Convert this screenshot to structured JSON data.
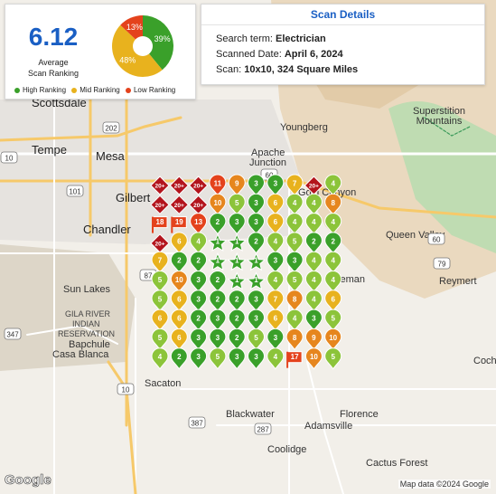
{
  "summary": {
    "score": "6.12",
    "score_label_1": "Average",
    "score_label_2": "Scan Ranking",
    "donut": [
      {
        "label": "39%",
        "value": 39,
        "color": "#3aa02a"
      },
      {
        "label": "48%",
        "value": 48,
        "color": "#e8b21e"
      },
      {
        "label": "13%",
        "value": 13,
        "color": "#e4421c"
      }
    ],
    "legend": [
      {
        "label": "High Ranking",
        "color": "#3aa02a"
      },
      {
        "label": "Mid Ranking",
        "color": "#e8b21e"
      },
      {
        "label": "Low Ranking",
        "color": "#e4421c"
      }
    ]
  },
  "details": {
    "title": "Scan Details",
    "search_prefix": "Search term:",
    "search_value": "Electrician",
    "date_prefix": "Scanned Date:",
    "date_value": "April 6, 2024",
    "scan_prefix": "Scan:",
    "scan_value": "10x10, 324 Square Miles"
  },
  "map": {
    "places": [
      {
        "name": "Scottsdale",
        "cls": "place-big"
      },
      {
        "name": "Tempe",
        "cls": "place-big"
      },
      {
        "name": "Mesa",
        "cls": "place-big"
      },
      {
        "name": "Gilbert",
        "cls": "place-big"
      },
      {
        "name": "Chandler",
        "cls": "place-big"
      },
      {
        "name": "Apache Junction",
        "cls": "place"
      },
      {
        "name": "Youngberg",
        "cls": "place"
      },
      {
        "name": "Superstition Mountains",
        "cls": "place"
      },
      {
        "name": "Queen Valley",
        "cls": "place"
      },
      {
        "name": "Reymert",
        "cls": "place"
      },
      {
        "name": "Sun Lakes",
        "cls": "place"
      },
      {
        "name": "GILA RIVER INDIAN RESERVATION",
        "cls": "place-sm"
      },
      {
        "name": "Bapchule",
        "cls": "place"
      },
      {
        "name": "Casa Blanca",
        "cls": "place"
      },
      {
        "name": "Sacaton",
        "cls": "place"
      },
      {
        "name": "Blackwater",
        "cls": "place"
      },
      {
        "name": "Florence",
        "cls": "place"
      },
      {
        "name": "Adamsville",
        "cls": "place"
      },
      {
        "name": "Coolidge",
        "cls": "place"
      },
      {
        "name": "Cactus Forest",
        "cls": "place"
      },
      {
        "name": "Cochise",
        "cls": "place"
      },
      {
        "name": "Freeman",
        "cls": "place"
      },
      {
        "name": "Gold Canyon",
        "cls": "place"
      }
    ],
    "highways": [
      "101",
      "202",
      "10",
      "60",
      "87",
      "347",
      "387",
      "287",
      "79",
      "88"
    ],
    "pin_colors": {
      "green": "#3aa02a",
      "lightgreen": "#8cc43a",
      "yellow": "#e8b21e",
      "orange": "#e6861e",
      "red": "#e4421c",
      "darkred": "#b3141c"
    },
    "grid": [
      [
        "20+",
        "20+",
        "20+",
        "11",
        "9",
        "3",
        "3",
        "7",
        "20+",
        "4"
      ],
      [
        "20+",
        "20+",
        "20+",
        "10",
        "5",
        "3",
        "6",
        "4",
        "4",
        "8"
      ],
      [
        "18",
        "19",
        "13",
        "2",
        "3",
        "3",
        "6",
        "4",
        "4",
        "4"
      ],
      [
        "20+",
        "6",
        "4",
        "1",
        "1",
        "2",
        "4",
        "5",
        "2",
        "2"
      ],
      [
        "7",
        "2",
        "2",
        "1",
        "1",
        "1",
        "3",
        "3",
        "4",
        "4"
      ],
      [
        "5",
        "10",
        "3",
        "2",
        "1",
        "1",
        "4",
        "5",
        "4",
        "4"
      ],
      [
        "5",
        "6",
        "3",
        "2",
        "2",
        "3",
        "7",
        "8",
        "4",
        "6"
      ],
      [
        "6",
        "6",
        "2",
        "3",
        "2",
        "3",
        "6",
        "4",
        "3",
        "5"
      ],
      [
        "5",
        "6",
        "3",
        "3",
        "2",
        "5",
        "3",
        "8",
        "9",
        "10"
      ],
      [
        "4",
        "2",
        "3",
        "5",
        "3",
        "3",
        "4",
        "17",
        "10",
        "5"
      ]
    ],
    "google": "Google",
    "attribution": "Map data ©2024 Google"
  }
}
